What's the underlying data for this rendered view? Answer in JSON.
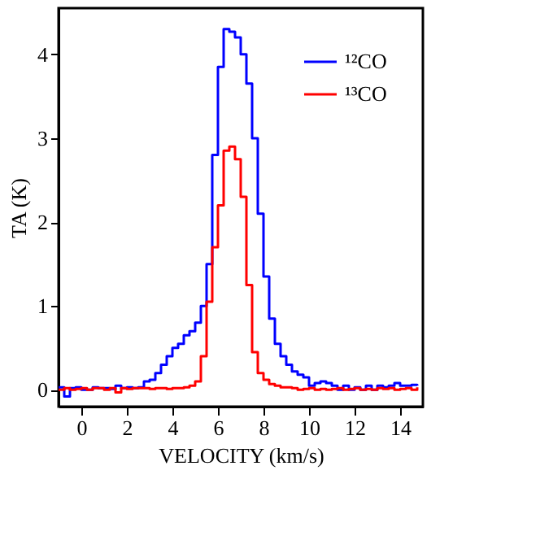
{
  "chart_data": {
    "type": "step",
    "xlabel": "VELOCITY (km/s)",
    "ylabel": "TA (K)",
    "x": [
      -1,
      -0.75,
      -0.5,
      -0.25,
      0,
      0.25,
      0.5,
      0.75,
      1,
      1.25,
      1.5,
      1.75,
      2,
      2.25,
      2.5,
      2.75,
      3,
      3.25,
      3.5,
      3.75,
      4,
      4.25,
      4.5,
      4.75,
      5,
      5.25,
      5.5,
      5.75,
      6,
      6.25,
      6.5,
      6.75,
      7,
      7.25,
      7.5,
      7.75,
      8,
      8.25,
      8.5,
      8.75,
      9,
      9.25,
      9.5,
      9.75,
      10,
      10.25,
      10.5,
      10.75,
      11,
      11.25,
      11.5,
      11.75,
      12,
      12.25,
      12.5,
      12.75,
      13,
      13.25,
      13.5,
      13.75,
      14,
      14.25,
      14.5,
      14.75
    ],
    "series": [
      {
        "name": "¹²CO",
        "color": "#0000ff",
        "values": [
          0.03,
          -0.08,
          0.02,
          0.03,
          0.0,
          0.0,
          0.03,
          0.02,
          0.02,
          0.01,
          0.05,
          0.02,
          0.03,
          0.02,
          0.03,
          0.1,
          0.12,
          0.2,
          0.3,
          0.4,
          0.5,
          0.55,
          0.65,
          0.7,
          0.8,
          1.0,
          1.5,
          2.8,
          3.85,
          4.3,
          4.27,
          4.2,
          4.0,
          3.65,
          3.0,
          2.1,
          1.35,
          0.85,
          0.55,
          0.4,
          0.3,
          0.22,
          0.18,
          0.15,
          0.05,
          0.08,
          0.1,
          0.08,
          0.05,
          0.0,
          0.05,
          0.0,
          0.03,
          0.0,
          0.05,
          0.0,
          0.05,
          0.03,
          0.05,
          0.08,
          0.05,
          0.05,
          0.06,
          0.05
        ]
      },
      {
        "name": "¹³CO",
        "color": "#ff0000",
        "values": [
          0.0,
          0.02,
          0.0,
          0.01,
          0.02,
          0.0,
          0.02,
          0.02,
          0.0,
          0.02,
          -0.03,
          0.02,
          0.01,
          0.02,
          0.02,
          0.02,
          0.01,
          0.02,
          0.02,
          0.01,
          0.02,
          0.02,
          0.03,
          0.05,
          0.1,
          0.4,
          1.05,
          1.7,
          2.2,
          2.85,
          2.9,
          2.75,
          2.3,
          1.25,
          0.45,
          0.2,
          0.12,
          0.07,
          0.05,
          0.03,
          0.03,
          0.02,
          0.0,
          0.01,
          0.02,
          0.0,
          0.01,
          0.0,
          0.01,
          0.02,
          0.0,
          0.01,
          0.02,
          0.0,
          0.01,
          0.0,
          0.02,
          0.01,
          0.02,
          0.0,
          0.01,
          0.02,
          0.0,
          0.03
        ]
      }
    ],
    "xlim": [
      -1,
      15
    ],
    "xticks": [
      0,
      2,
      4,
      6,
      8,
      10,
      12,
      14
    ],
    "ylim": [
      -0.2,
      4.55
    ],
    "yticks": [
      0,
      1,
      2,
      3,
      4
    ],
    "grid": false,
    "legend": "top right",
    "line_style": "solid",
    "marker": "none"
  }
}
